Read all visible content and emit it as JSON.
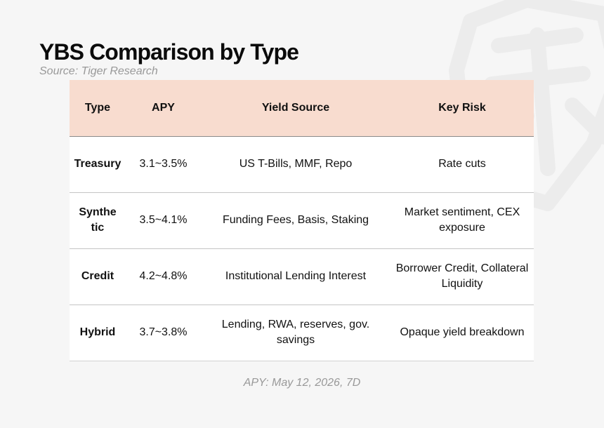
{
  "header": {
    "title": "YBS Comparison by Type",
    "subtitle": "Source: Tiger Research"
  },
  "table": {
    "columns": [
      "Type",
      "APY",
      "Yield Source",
      "Key Risk"
    ],
    "rows": [
      [
        "Treasury",
        "3.1~3.5%",
        "US T-Bills, MMF, Repo",
        "Rate cuts"
      ],
      [
        "Synthe tic",
        "3.5~4.1%",
        "Funding Fees, Basis, Staking",
        "Market sentiment, CEX exposure"
      ],
      [
        "Credit",
        "4.2~4.8%",
        "Institutional Lending Interest",
        "Borrower Credit, Collateral Liquidity"
      ],
      [
        "Hybrid",
        "3.7~3.8%",
        "Lending, RWA, reserves, gov. savings",
        "Opaque yield breakdown"
      ]
    ]
  },
  "footer": {
    "note": "APY: May 12, 2026, 7D"
  },
  "colors": {
    "background": "#f6f6f6",
    "header_fill": "#f8dccf",
    "muted_text": "#999999",
    "watermark": "#ececec"
  },
  "icons": {
    "watermark": "tiger-logo-watermark"
  }
}
